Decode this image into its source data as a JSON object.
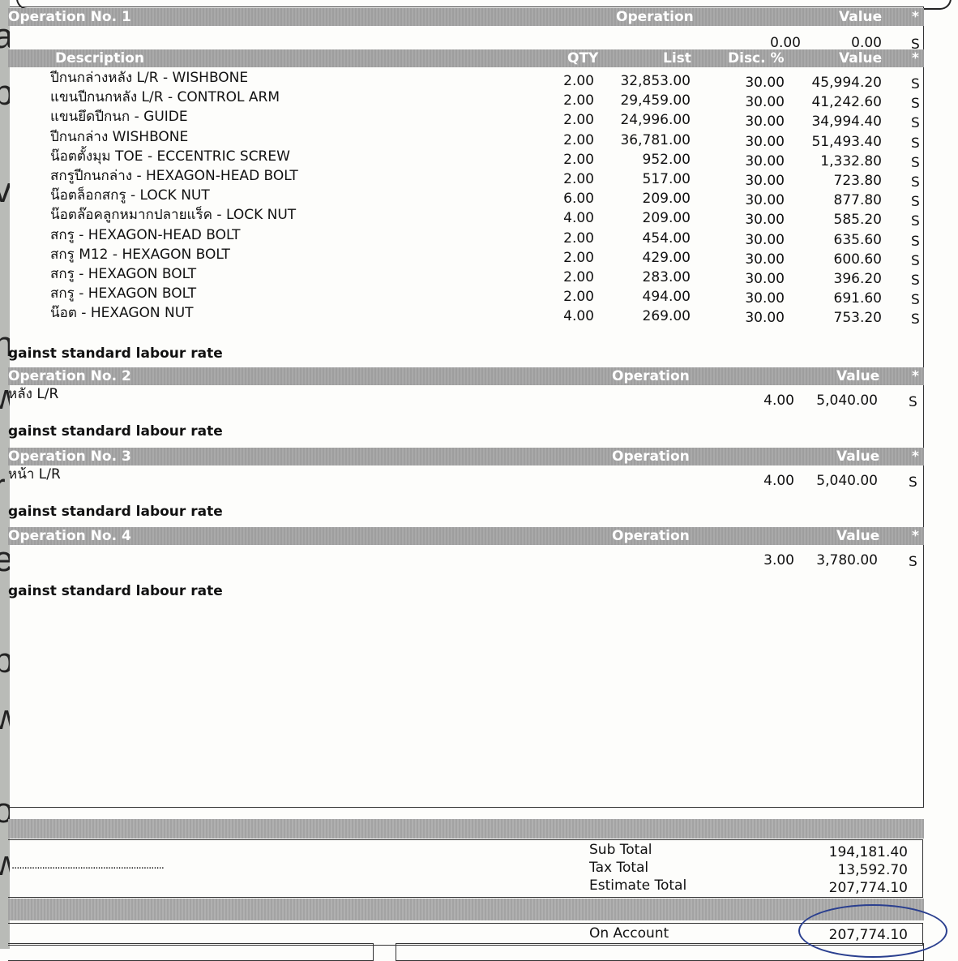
{
  "left_strip_glyphs": [
    "a",
    "p",
    "v",
    "n",
    "w",
    "r",
    "e",
    "p",
    "w",
    "o",
    "w"
  ],
  "header_cols": {
    "operation": "Operation",
    "value": "Value",
    "star": "*",
    "s": "S"
  },
  "operations": [
    {
      "title": "Operation No. 1",
      "qty": "0.00",
      "value": "0.00",
      "status": "S"
    },
    {
      "title": "Operation No. 2",
      "desc": "หลัง L/R",
      "qty": "4.00",
      "value": "5,040.00",
      "status": "S"
    },
    {
      "title": "Operation No. 3",
      "desc": "หน้า L/R",
      "qty": "4.00",
      "value": "5,040.00",
      "status": "S"
    },
    {
      "title": "Operation No. 4",
      "desc": "",
      "qty": "3.00",
      "value": "3,780.00",
      "status": "S"
    }
  ],
  "labour_note": "gainst standard labour rate",
  "parts_header": {
    "description": "Description",
    "qty": "QTY",
    "list": "List",
    "disc": "Disc. %",
    "value": "Value",
    "star": "*"
  },
  "parts": [
    {
      "desc": "ปีกนกล่างหลัง L/R - WISHBONE",
      "qty": "2.00",
      "list": "32,853.00",
      "disc": "30.00",
      "value": "45,994.20",
      "s": "S"
    },
    {
      "desc": "แขนปีกนกหลัง L/R - CONTROL ARM",
      "qty": "2.00",
      "list": "29,459.00",
      "disc": "30.00",
      "value": "41,242.60",
      "s": "S"
    },
    {
      "desc": "แขนยึดปีกนก - GUIDE",
      "qty": "2.00",
      "list": "24,996.00",
      "disc": "30.00",
      "value": "34,994.40",
      "s": "S"
    },
    {
      "desc": "ปีกนกล่าง WISHBONE",
      "qty": "2.00",
      "list": "36,781.00",
      "disc": "30.00",
      "value": "51,493.40",
      "s": "S"
    },
    {
      "desc": "น๊อตตั้งมุม TOE - ECCENTRIC SCREW",
      "qty": "2.00",
      "list": "952.00",
      "disc": "30.00",
      "value": "1,332.80",
      "s": "S"
    },
    {
      "desc": "สกรูปีกนกล่าง - HEXAGON-HEAD BOLT",
      "qty": "2.00",
      "list": "517.00",
      "disc": "30.00",
      "value": "723.80",
      "s": "S"
    },
    {
      "desc": "น๊อตล็อกสกรู - LOCK NUT",
      "qty": "6.00",
      "list": "209.00",
      "disc": "30.00",
      "value": "877.80",
      "s": "S"
    },
    {
      "desc": "น๊อตล๊อคลูกหมากปลายแร็ค - LOCK NUT",
      "qty": "4.00",
      "list": "209.00",
      "disc": "30.00",
      "value": "585.20",
      "s": "S"
    },
    {
      "desc": "สกรู - HEXAGON-HEAD BOLT",
      "qty": "2.00",
      "list": "454.00",
      "disc": "30.00",
      "value": "635.60",
      "s": "S"
    },
    {
      "desc": "สกรู M12 - HEXAGON BOLT",
      "qty": "2.00",
      "list": "429.00",
      "disc": "30.00",
      "value": "600.60",
      "s": "S"
    },
    {
      "desc": "สกรู - HEXAGON BOLT",
      "qty": "2.00",
      "list": "283.00",
      "disc": "30.00",
      "value": "396.20",
      "s": "S"
    },
    {
      "desc": "สกรู - HEXAGON BOLT",
      "qty": "2.00",
      "list": "494.00",
      "disc": "30.00",
      "value": "691.60",
      "s": "S"
    },
    {
      "desc": "น๊อต - HEXAGON NUT",
      "qty": "4.00",
      "list": "269.00",
      "disc": "30.00",
      "value": "753.20",
      "s": "S"
    }
  ],
  "totals": {
    "sub_total_label": "Sub Total",
    "sub_total": "194,181.40",
    "tax_total_label": "Tax Total",
    "tax_total": "13,592.70",
    "estimate_total_label": "Estimate Total",
    "estimate_total": "207,774.10",
    "on_account_label": "On Account",
    "on_account": "207,774.10",
    "signature_dots": "............................................................"
  },
  "colors": {
    "header_bar": "#a5a5a5",
    "ink_circle": "#2a3f8f"
  }
}
